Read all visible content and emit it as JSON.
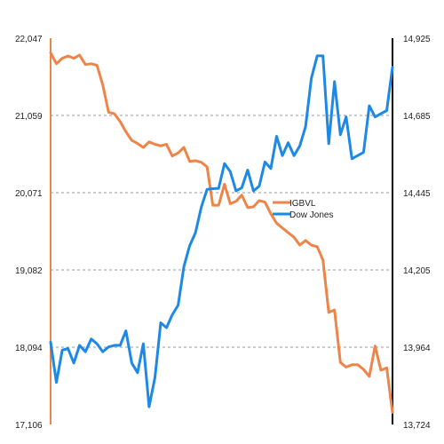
{
  "chart_data": {
    "type": "line",
    "title": "",
    "xlabel": "",
    "grid": "horizontal dashed",
    "legend_position": "center-right",
    "left_axis": {
      "ticks": [
        "22,047",
        "21,059",
        "20,071",
        "19,082",
        "18,094",
        "17,106"
      ],
      "ylim": [
        17106,
        22047
      ]
    },
    "right_axis": {
      "ticks": [
        "14,925",
        "14,685",
        "14,445",
        "14,205",
        "13,964",
        "13,724"
      ],
      "ylim": [
        13724,
        14925
      ]
    },
    "series": [
      {
        "name": "IGBVL",
        "axis": "left",
        "color": "#EE8448",
        "values": [
          21860,
          21720,
          21790,
          21820,
          21790,
          21830,
          21710,
          21720,
          21700,
          21450,
          21100,
          21080,
          20980,
          20850,
          20740,
          20700,
          20650,
          20720,
          20690,
          20670,
          20690,
          20540,
          20580,
          20650,
          20470,
          20480,
          20460,
          20400,
          19910,
          19910,
          20180,
          19930,
          19960,
          20040,
          19880,
          19890,
          19970,
          19950,
          19800,
          19680,
          19620,
          19560,
          19500,
          19400,
          19460,
          19400,
          19380,
          19210,
          18540,
          18570,
          17900,
          17840,
          17870,
          17870,
          17810,
          17720,
          18110,
          17800,
          17830,
          17260
        ]
      },
      {
        "name": "Dow Jones",
        "axis": "right",
        "color": "#1E88E5",
        "values": [
          13980,
          13855,
          13955,
          13960,
          13915,
          13970,
          13950,
          13990,
          13975,
          13950,
          13965,
          13970,
          13970,
          14015,
          13915,
          13885,
          13975,
          13779,
          13870,
          14040,
          14025,
          14065,
          14095,
          14215,
          14280,
          14320,
          14400,
          14455,
          14457,
          14458,
          14535,
          14510,
          14450,
          14460,
          14515,
          14450,
          14465,
          14540,
          14520,
          14620,
          14560,
          14600,
          14560,
          14590,
          14650,
          14800,
          14870,
          14870,
          14597,
          14790,
          14625,
          14680,
          14550,
          14560,
          14570,
          14715,
          14680,
          14690,
          14700,
          14835
        ]
      }
    ]
  }
}
